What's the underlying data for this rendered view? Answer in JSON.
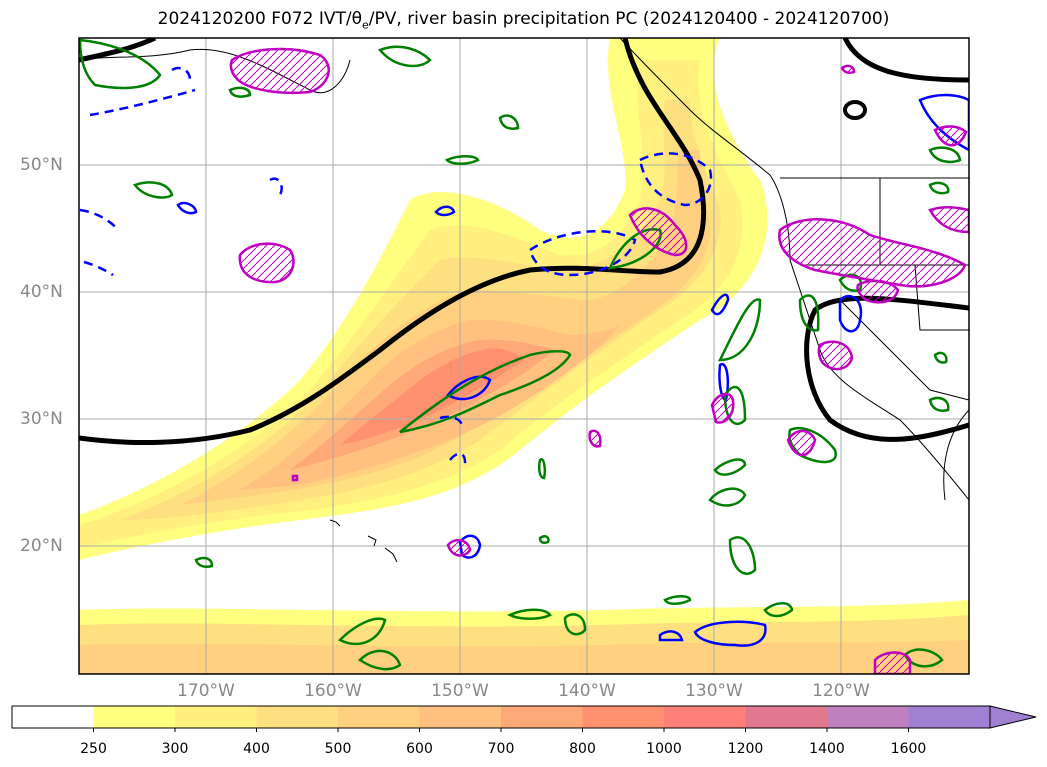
{
  "title": {
    "prefix": "2024120200 F072 IVT/",
    "theta": "θ",
    "sub": "e",
    "suffix": "/PV, river basin precipitation PC (2024120400 - 2024120700)"
  },
  "map": {
    "lat_labels": [
      "50°N",
      "40°N",
      "30°N",
      "20°N"
    ],
    "lon_labels": [
      "170°W",
      "160°W",
      "150°W",
      "140°W",
      "130°W",
      "120°W"
    ],
    "extent": {
      "lon_min": -180,
      "lon_max": -110,
      "lat_min": 10,
      "lat_max": 60
    }
  },
  "colorbar": {
    "ticks": [
      "250",
      "300",
      "400",
      "500",
      "600",
      "700",
      "800",
      "1000",
      "1200",
      "1400",
      "1600"
    ],
    "colors": [
      "#ffffff",
      "#ffff80",
      "#fff080",
      "#ffe080",
      "#ffd080",
      "#ffc080",
      "#ffa878",
      "#ff9070",
      "#ff8078",
      "#e07890",
      "#c080c0",
      "#a080d0"
    ],
    "extend": "max"
  },
  "legend_colors": {
    "ivt_fill": "#ffb070",
    "theta_e_contour": "#000000",
    "pv_contour": "#0000ff",
    "precip_pc_green": "#008000",
    "precip_pc_magenta": "#c000c0"
  }
}
